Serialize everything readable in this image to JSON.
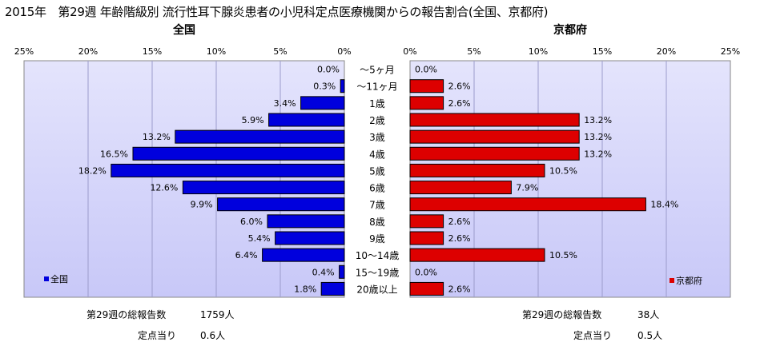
{
  "title": "2015年　第29週 年齢階級別 流行性耳下腺炎患者の小児科定点医療機関からの報告割合(全国、京都府)",
  "colors": {
    "national": "#0000dd",
    "kyoto": "#dd0000",
    "plot_bg": "#c8c8f8"
  },
  "chart_data": [
    {
      "type": "bar",
      "orientation": "horizontal",
      "direction": "reversed",
      "title": "全国",
      "categories": [
        "～5ヶ月",
        "～11ヶ月",
        "1歳",
        "2歳",
        "3歳",
        "4歳",
        "5歳",
        "6歳",
        "7歳",
        "8歳",
        "9歳",
        "10～14歳",
        "15～19歳",
        "20歳以上"
      ],
      "series": [
        {
          "name": "全国",
          "values": [
            0.0,
            0.3,
            3.4,
            5.9,
            13.2,
            16.5,
            18.2,
            12.6,
            9.9,
            6.0,
            5.4,
            6.4,
            0.4,
            1.8
          ]
        }
      ],
      "data_labels": [
        "0.0%",
        "0.3%",
        "3.4%",
        "5.9%",
        "13.2%",
        "16.5%",
        "18.2%",
        "12.6%",
        "9.9%",
        "6.0%",
        "5.4%",
        "6.4%",
        "0.4%",
        "1.8%"
      ],
      "xlim": [
        0,
        25
      ],
      "ticks": [
        "0%",
        "5%",
        "10%",
        "15%",
        "20%",
        "25%"
      ],
      "grid": true,
      "legend": "bottom-left"
    },
    {
      "type": "bar",
      "orientation": "horizontal",
      "title": "京都府",
      "categories": [
        "～5ヶ月",
        "～11ヶ月",
        "1歳",
        "2歳",
        "3歳",
        "4歳",
        "5歳",
        "6歳",
        "7歳",
        "8歳",
        "9歳",
        "10～14歳",
        "15～19歳",
        "20歳以上"
      ],
      "series": [
        {
          "name": "京都府",
          "values": [
            0.0,
            2.6,
            2.6,
            13.2,
            13.2,
            13.2,
            10.5,
            7.9,
            18.4,
            2.6,
            2.6,
            10.5,
            0.0,
            2.6
          ]
        }
      ],
      "data_labels": [
        "0.0%",
        "2.6%",
        "2.6%",
        "13.2%",
        "13.2%",
        "13.2%",
        "10.5%",
        "7.9%",
        "18.4%",
        "2.6%",
        "2.6%",
        "10.5%",
        "0.0%",
        "2.6%"
      ],
      "xlim": [
        0,
        25
      ],
      "ticks": [
        "0%",
        "5%",
        "10%",
        "15%",
        "20%",
        "25%"
      ],
      "grid": true,
      "legend": "bottom-right"
    }
  ],
  "footer": {
    "national": {
      "total_label": "第29週の総報告数",
      "total_value": "1759人",
      "per_label": "定点当り",
      "per_value": "0.6人"
    },
    "kyoto": {
      "total_label": "第29週の総報告数",
      "total_value": "38人",
      "per_label": "定点当り",
      "per_value": "0.5人"
    }
  }
}
